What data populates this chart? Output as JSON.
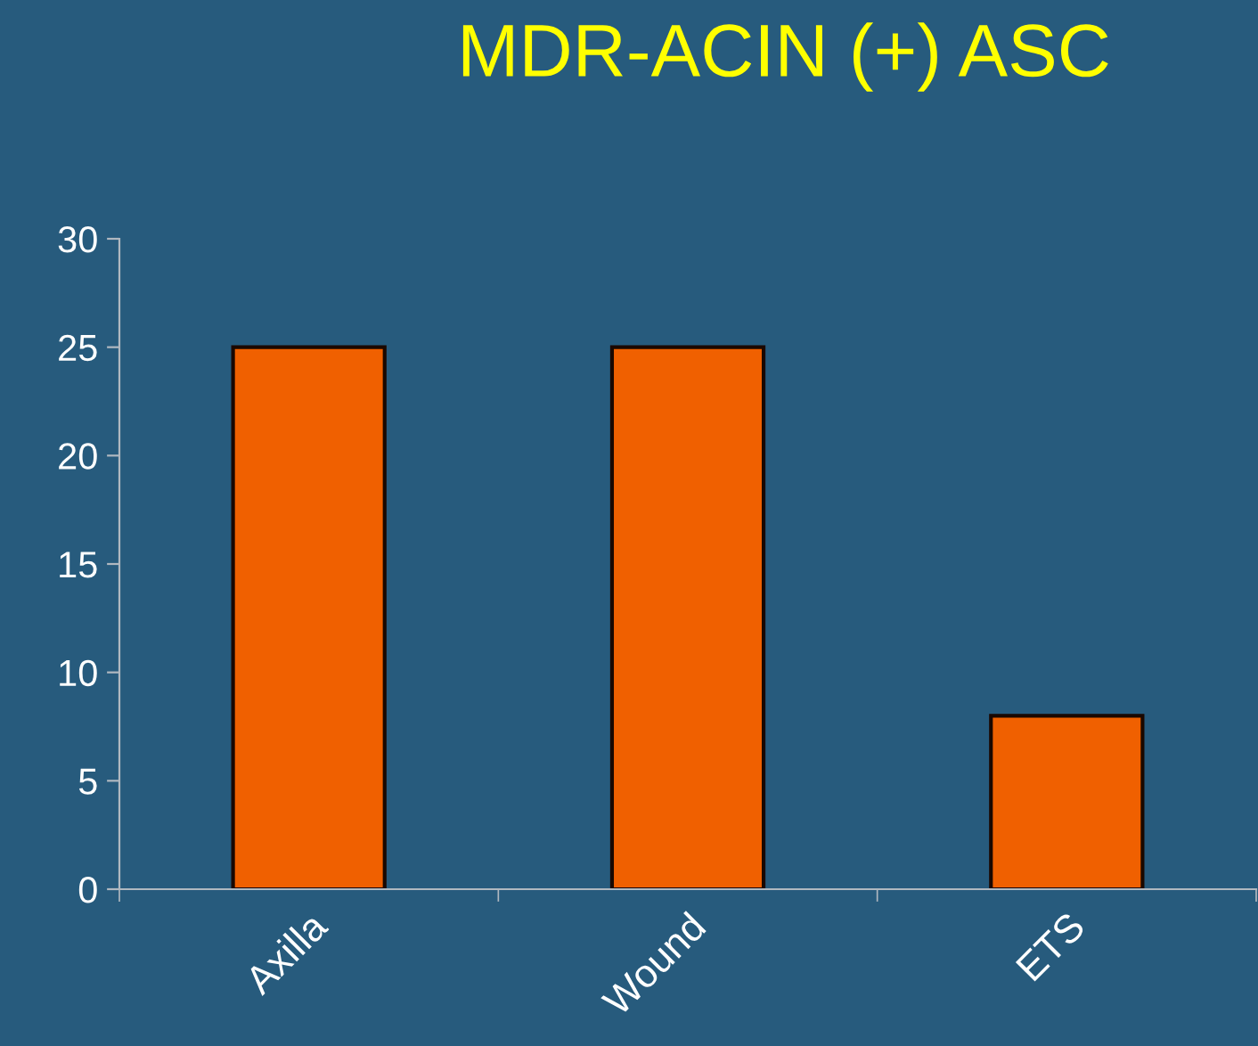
{
  "chart_data": {
    "type": "bar",
    "title": "MDR-ACIN (+) ASC",
    "categories": [
      "Axilla",
      "Wound",
      "ETS"
    ],
    "values": [
      25,
      25,
      8
    ],
    "color": "#f06000",
    "ylim": [
      0,
      30
    ],
    "yticks": [
      0,
      5,
      10,
      15,
      20,
      25,
      30
    ],
    "grid": false,
    "legend": false
  }
}
